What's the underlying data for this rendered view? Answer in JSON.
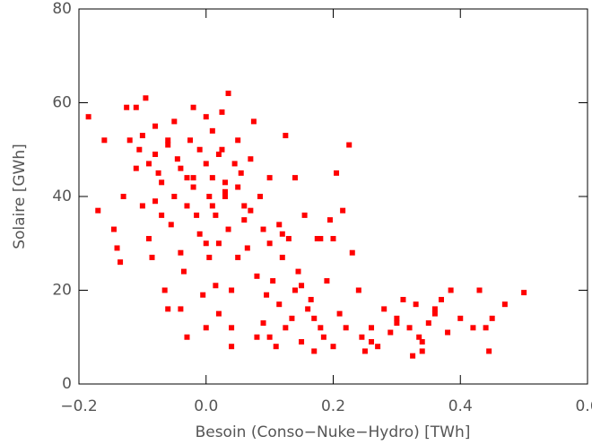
{
  "chart_data": {
    "type": "scatter",
    "xlabel": "Besoin (Conso−Nuke−Hydro) [TWh]",
    "ylabel": "Solaire [GWh]",
    "color": "#ff0000",
    "xlim": [
      -0.2,
      0.6
    ],
    "ylim": [
      0,
      80
    ],
    "xticks": [
      {
        "value": -0.2,
        "label": "−0.2"
      },
      {
        "value": 0,
        "label": "0.0"
      },
      0.2,
      0.4,
      0.6
    ],
    "yticks": [
      0,
      20,
      40,
      60,
      80
    ],
    "x": [
      -0.185,
      -0.17,
      -0.16,
      -0.145,
      -0.14,
      -0.135,
      -0.13,
      -0.125,
      -0.12,
      -0.11,
      -0.105,
      -0.1,
      -0.1,
      -0.095,
      -0.09,
      -0.09,
      -0.085,
      -0.08,
      -0.08,
      -0.075,
      -0.07,
      -0.07,
      -0.065,
      -0.06,
      -0.06,
      -0.055,
      -0.05,
      -0.05,
      -0.045,
      -0.04,
      -0.04,
      -0.035,
      -0.03,
      -0.03,
      -0.025,
      -0.02,
      -0.02,
      -0.015,
      -0.01,
      -0.01,
      -0.005,
      0,
      0,
      0,
      0.005,
      0.005,
      0.01,
      0.01,
      0.015,
      0.015,
      0.02,
      0.02,
      0.025,
      0.025,
      0.03,
      0.03,
      0.035,
      0.035,
      0.04,
      0.04,
      0.04,
      0.045,
      0.05,
      0.05,
      0.055,
      0.06,
      0.065,
      0.07,
      0.075,
      0.08,
      0.085,
      0.09,
      0.09,
      0.095,
      0.1,
      0.1,
      0.105,
      0.11,
      0.115,
      0.115,
      0.12,
      0.125,
      0.125,
      0.13,
      0.135,
      0.14,
      0.14,
      0.145,
      0.15,
      0.155,
      0.16,
      0.165,
      0.17,
      0.175,
      0.18,
      0.185,
      0.19,
      0.195,
      0.2,
      0.205,
      0.21,
      0.215,
      0.22,
      0.225,
      0.23,
      0.24,
      0.245,
      0.25,
      0.26,
      0.27,
      0.28,
      0.29,
      0.3,
      0.31,
      0.32,
      0.325,
      0.33,
      0.335,
      0.34,
      0.35,
      0.36,
      0.37,
      0.38,
      0.385,
      0.4,
      0.43,
      0.44,
      0.445,
      0.45,
      0.47,
      0.5,
      0.18,
      0.06,
      -0.06,
      0.05,
      0.01,
      -0.03,
      -0.11,
      -0.02,
      0.02,
      0.07,
      0.1,
      0.15,
      0.17,
      0.2,
      0.26,
      0.3,
      0.34,
      0.36,
      0.42,
      0.12,
      0.08,
      -0.08,
      -0.04,
      0.0,
      0.03
    ],
    "y": [
      57,
      37,
      52,
      33,
      29,
      26,
      40,
      59,
      52,
      59,
      50,
      38,
      53,
      61,
      47,
      31,
      27,
      55,
      49,
      45,
      43,
      36,
      20,
      16,
      52,
      34,
      40,
      56,
      48,
      28,
      16,
      24,
      44,
      38,
      52,
      59,
      42,
      36,
      50,
      32,
      19,
      12,
      57,
      47,
      40,
      27,
      54,
      44,
      36,
      21,
      30,
      15,
      50,
      58,
      40,
      43,
      62,
      33,
      20,
      12,
      8,
      47,
      52,
      27,
      45,
      35,
      29,
      48,
      56,
      23,
      40,
      33,
      13,
      19,
      44,
      10,
      22,
      8,
      34,
      17,
      27,
      53,
      12,
      31,
      14,
      20,
      44,
      24,
      9,
      36,
      16,
      18,
      7,
      31,
      12,
      10,
      22,
      35,
      8,
      45,
      15,
      37,
      12,
      51,
      28,
      20,
      10,
      7,
      12,
      8,
      16,
      11,
      14,
      18,
      12,
      6,
      17,
      10,
      7,
      13,
      16,
      18,
      11,
      20,
      14,
      20,
      12,
      7,
      14,
      17,
      19.5,
      31,
      38,
      51,
      42,
      38,
      10,
      46,
      44,
      49,
      37,
      30,
      21,
      14,
      31,
      9,
      13,
      9,
      15,
      12,
      32,
      10,
      39,
      46,
      30,
      41
    ]
  }
}
